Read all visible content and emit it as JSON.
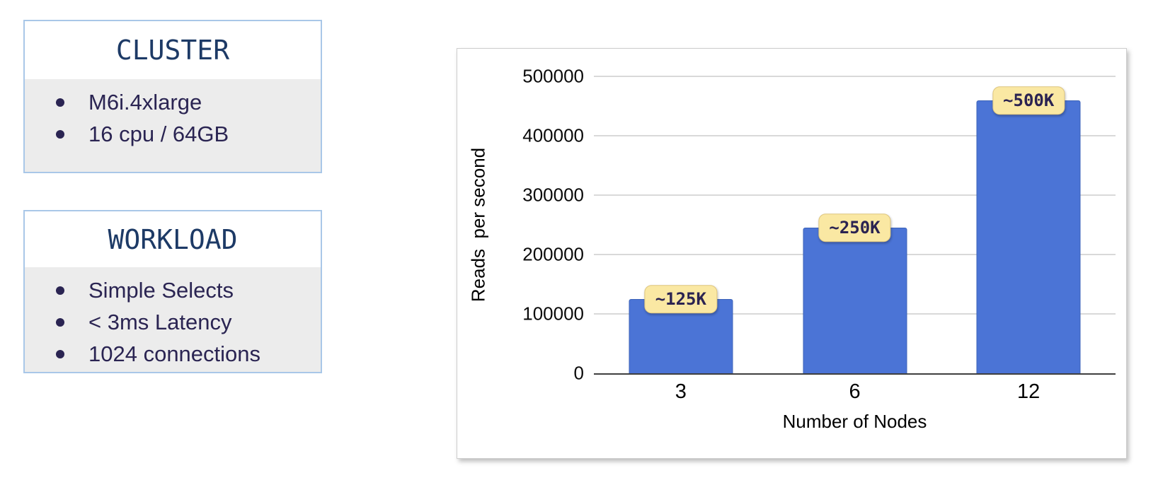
{
  "panels": {
    "cluster": {
      "title": "CLUSTER",
      "items": [
        "M6i.4xlarge",
        "16 cpu / 64GB"
      ]
    },
    "workload": {
      "title": "WORKLOAD",
      "items": [
        "Simple Selects",
        "< 3ms Latency",
        "1024 connections"
      ]
    }
  },
  "chart_data": {
    "type": "bar",
    "categories": [
      "3",
      "6",
      "12"
    ],
    "values": [
      125000,
      245000,
      460000
    ],
    "bar_labels": [
      "~125K",
      "~250K",
      "~500K"
    ],
    "title": "",
    "xlabel": "Number of Nodes",
    "ylabel": "Reads  per second",
    "ylim": [
      0,
      500000
    ],
    "yticks": [
      0,
      100000,
      200000,
      300000,
      400000,
      500000
    ],
    "grid": "horizontal",
    "legend": "none"
  },
  "colors": {
    "bar_fill": "#4b74d6",
    "bar_border": "#3c63b8",
    "badge_bg": "#fae8a3",
    "badge_border": "#dfc67f",
    "badge_text": "#2b2351",
    "panel_border": "#a9c7e8",
    "panel_body_bg": "#ececec",
    "heading_text": "#1d3a66",
    "bullet_text": "#2a2452"
  }
}
